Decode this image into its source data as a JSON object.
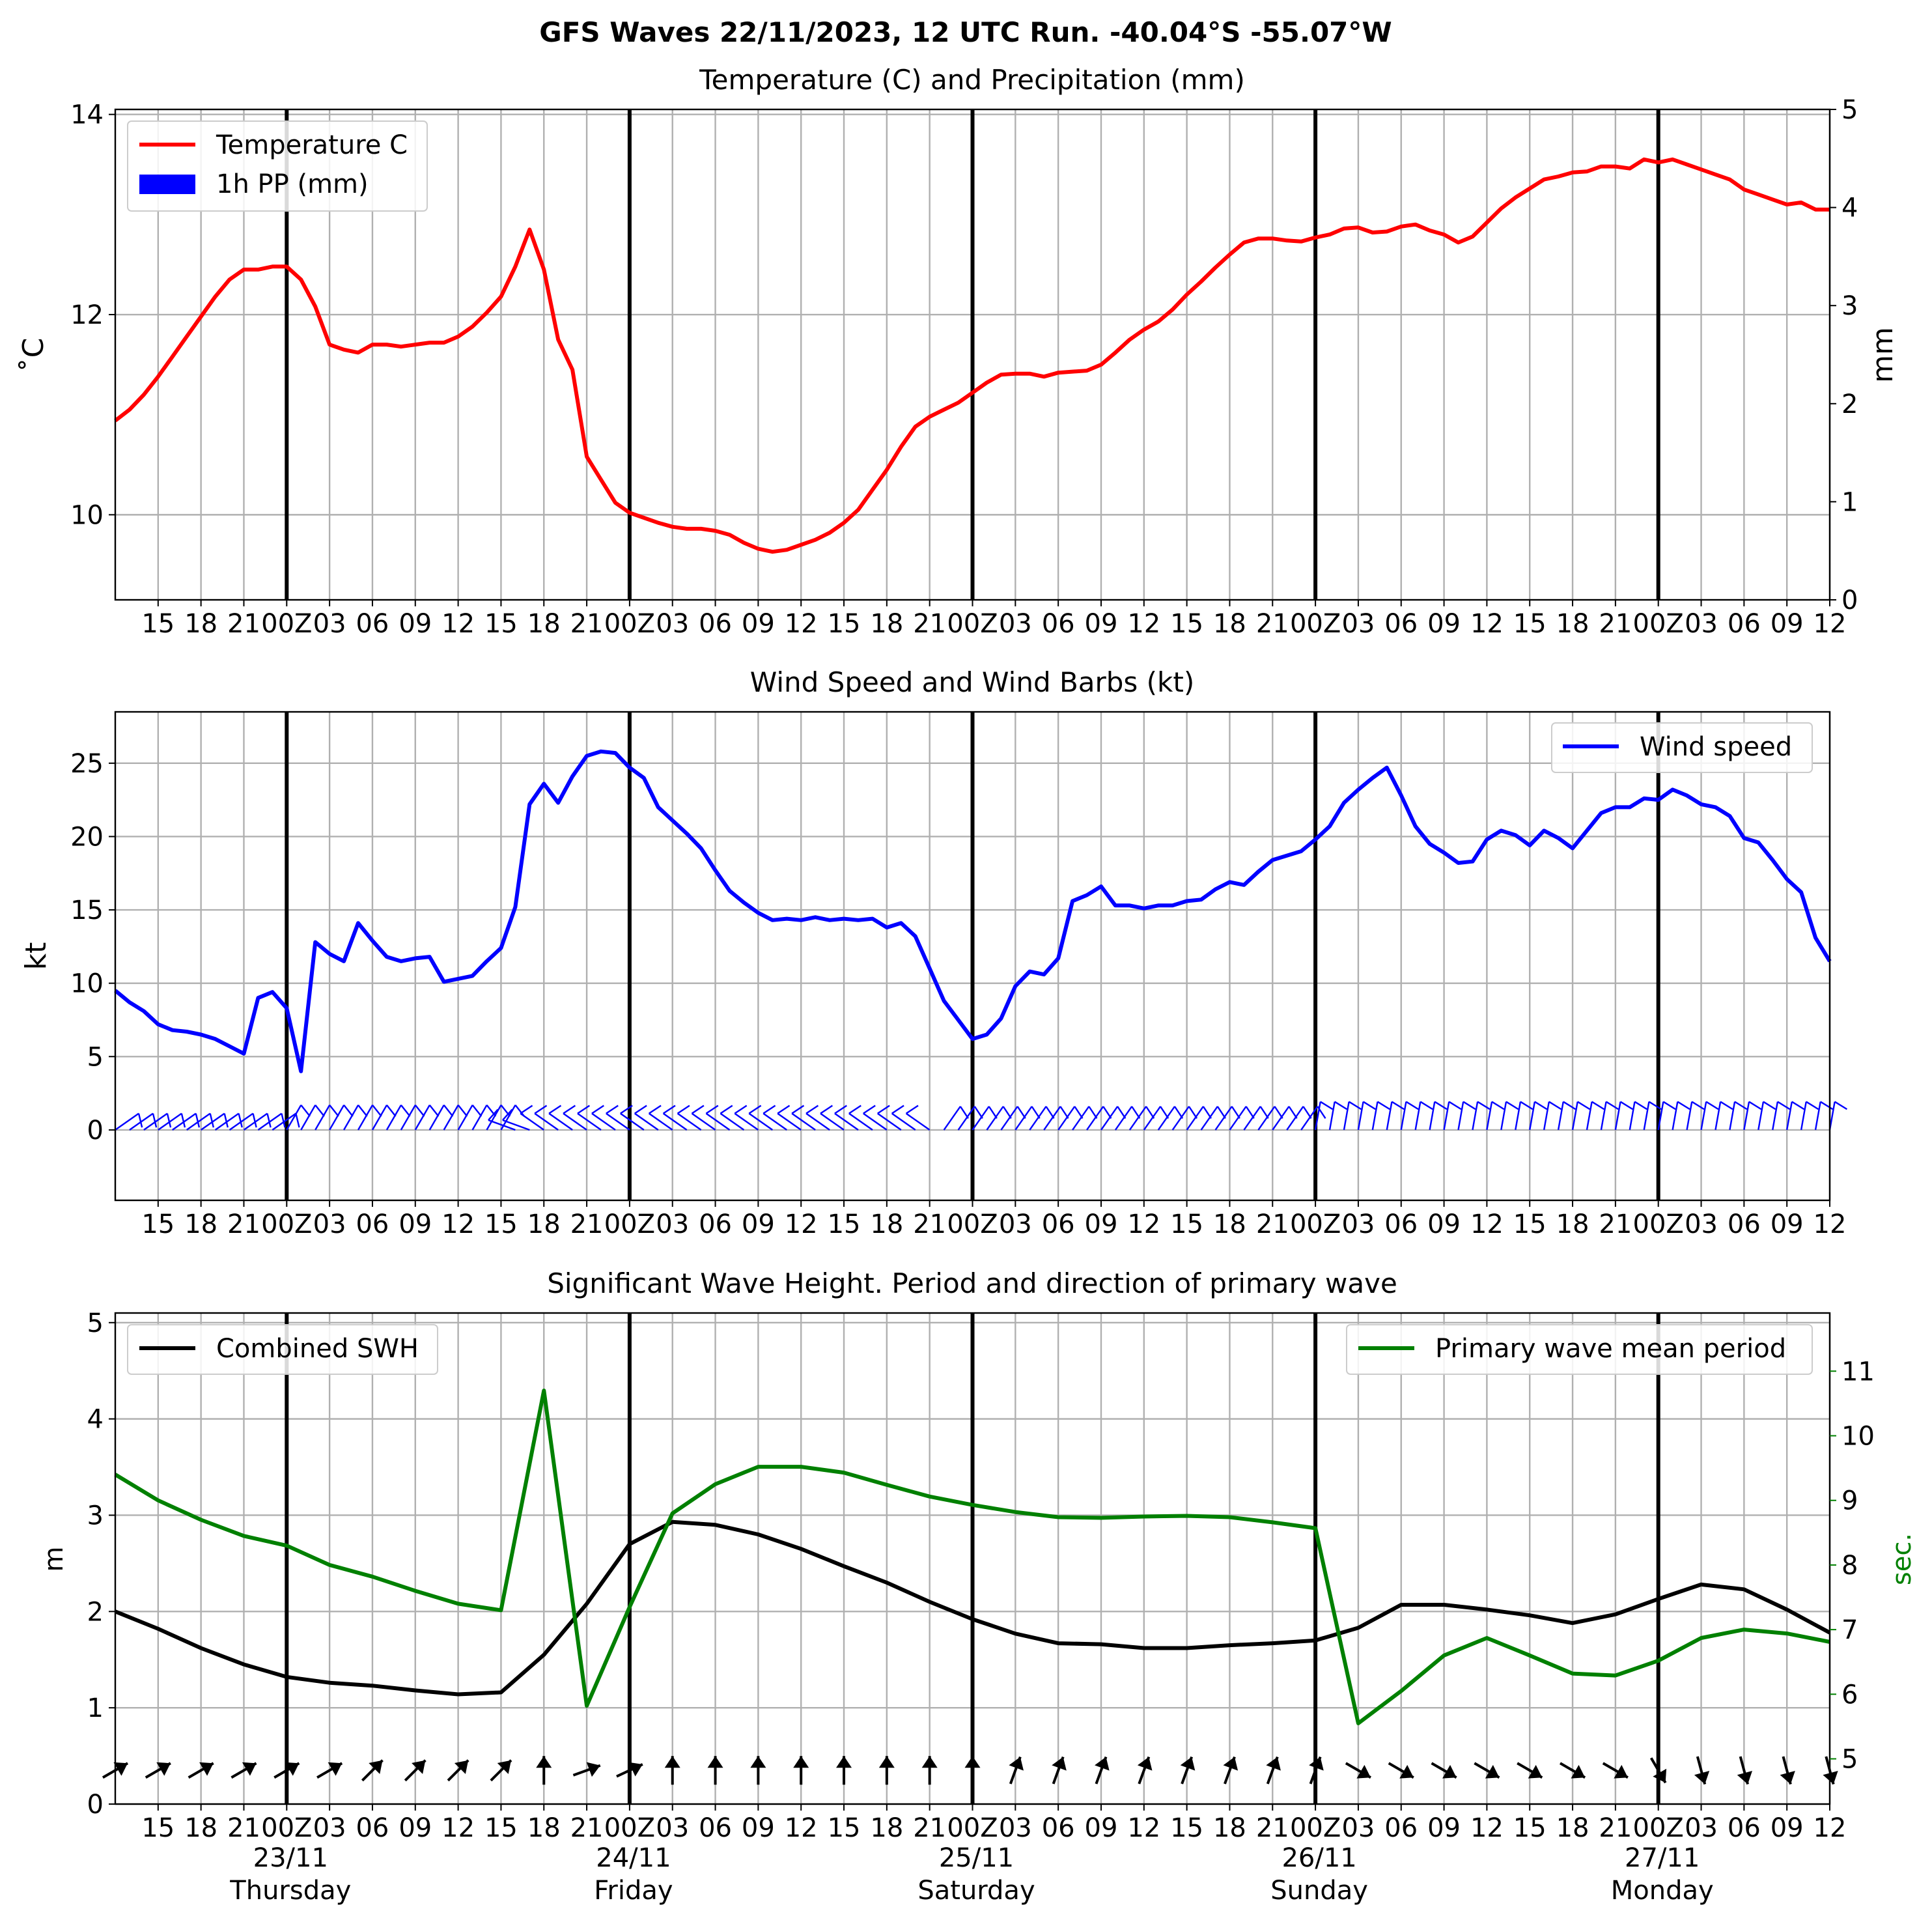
{
  "suptitle": "GFS Waves 22/11/2023, 12 UTC Run. -40.04°S -55.07°W",
  "colors": {
    "temperature": "#ff0000",
    "precip": "#0000ff",
    "wind": "#0000ff",
    "swh": "#000000",
    "period": "#008000",
    "grid": "#b0b0b0",
    "day_line": "#000000"
  },
  "time_axis": {
    "tick_labels": [
      "15",
      "18",
      "21",
      "00Z",
      "03",
      "06",
      "09",
      "12",
      "15",
      "18",
      "21",
      "00Z",
      "03",
      "06",
      "09",
      "12",
      "15",
      "18",
      "21",
      "00Z",
      "03",
      "06",
      "09",
      "12",
      "15",
      "18",
      "21",
      "00Z",
      "03",
      "06",
      "09",
      "12",
      "15",
      "18",
      "21",
      "00Z",
      "03",
      "06",
      "09",
      "12"
    ],
    "date_labels": [
      {
        "date": "23/11",
        "day": "Thursday"
      },
      {
        "date": "24/11",
        "day": "Friday"
      },
      {
        "date": "25/11",
        "day": "Saturday"
      },
      {
        "date": "26/11",
        "day": "Sunday"
      },
      {
        "date": "27/11",
        "day": "Monday"
      }
    ]
  },
  "chart_data": [
    {
      "type": "line",
      "title": "Temperature (C) and Precipitation (mm)",
      "ylabel": "$^\\circ$C",
      "ylabel_display": "˚C",
      "y2label": "mm",
      "ylim": [
        9.15,
        14.05
      ],
      "y2lim": [
        0,
        5
      ],
      "yticks": [
        "10",
        "12",
        "14"
      ],
      "y2ticks": [
        "0",
        "1",
        "2",
        "3",
        "4",
        "5"
      ],
      "legend": [
        "Temperature C",
        "1h PP (mm)"
      ],
      "legend_position": "upper-left",
      "x_hours": [
        0,
        1,
        2,
        3,
        4,
        5,
        6,
        7,
        8,
        9,
        10,
        11,
        12,
        13,
        14,
        15,
        16,
        17,
        18,
        19,
        20,
        21,
        22,
        23,
        24,
        25,
        26,
        27,
        28,
        29,
        30,
        31,
        32,
        33,
        34,
        35,
        36,
        37,
        38,
        39,
        40,
        41,
        42,
        43,
        44,
        45,
        46,
        47,
        48,
        49,
        50,
        51,
        52,
        53,
        54,
        55,
        56,
        57,
        58,
        59,
        60,
        61,
        62,
        63,
        64,
        65,
        66,
        67,
        68,
        69,
        70,
        71,
        72,
        73,
        74,
        75,
        76,
        77,
        78,
        79,
        80,
        81,
        82,
        83,
        84,
        85,
        86,
        87,
        88,
        89,
        90,
        91,
        92,
        93,
        94,
        95,
        96,
        97,
        98,
        99,
        100,
        101,
        102,
        103,
        104,
        105,
        106,
        107,
        108,
        109,
        110,
        111,
        112,
        113,
        114,
        115,
        116,
        117,
        118,
        119,
        120
      ],
      "temperature": [
        10.94,
        11.05,
        11.2,
        11.38,
        11.58,
        11.78,
        11.98,
        12.18,
        12.35,
        12.45,
        12.45,
        12.48,
        12.48,
        12.35,
        12.08,
        11.7,
        11.65,
        11.62,
        11.7,
        11.7,
        11.68,
        11.7,
        11.72,
        11.72,
        11.78,
        11.88,
        12.02,
        12.18,
        12.48,
        12.85,
        12.45,
        11.75,
        11.45,
        10.58,
        10.35,
        10.12,
        10.02,
        9.97,
        9.92,
        9.88,
        9.86,
        9.86,
        9.84,
        9.8,
        9.72,
        9.66,
        9.63,
        9.65,
        9.7,
        9.75,
        9.82,
        9.92,
        10.05,
        10.25,
        10.45,
        10.68,
        10.88,
        10.98,
        11.05,
        11.12,
        11.22,
        11.32,
        11.4,
        11.41,
        11.41,
        11.38,
        11.42,
        11.43,
        11.44,
        11.5,
        11.62,
        11.75,
        11.85,
        11.93,
        12.05,
        12.2,
        12.33,
        12.47,
        12.6,
        12.72,
        12.76,
        12.76,
        12.74,
        12.73,
        12.77,
        12.8,
        12.86,
        12.87,
        12.82,
        12.83,
        12.88,
        12.9,
        12.84,
        12.8,
        12.72,
        12.78,
        12.92,
        13.06,
        13.17,
        13.26,
        13.35,
        13.38,
        13.42,
        13.43,
        13.48,
        13.48,
        13.46,
        13.55,
        13.52,
        13.55,
        13.5,
        13.45,
        13.4,
        13.35,
        13.25,
        13.2,
        13.15,
        13.1,
        13.12,
        13.05,
        13.05
      ],
      "precip": []
    },
    {
      "type": "line",
      "title": "Wind Speed and Wind Barbs (kt)",
      "ylabel": "kt",
      "ylim": [
        -4.8,
        28.5
      ],
      "yticks": [
        "0",
        "5",
        "10",
        "15",
        "20",
        "25"
      ],
      "legend": [
        "Wind speed"
      ],
      "legend_position": "upper-right",
      "x_hours": [
        0,
        1,
        2,
        3,
        4,
        5,
        6,
        7,
        8,
        9,
        10,
        11,
        12,
        13,
        14,
        15,
        16,
        17,
        18,
        19,
        20,
        21,
        22,
        23,
        24,
        25,
        26,
        27,
        28,
        29,
        30,
        31,
        32,
        33,
        34,
        35,
        36,
        37,
        38,
        39,
        40,
        41,
        42,
        43,
        44,
        45,
        46,
        47,
        48,
        49,
        50,
        51,
        52,
        53,
        54,
        55,
        56,
        57,
        58,
        59,
        60,
        61,
        62,
        63,
        64,
        65,
        66,
        67,
        68,
        69,
        70,
        71,
        72,
        73,
        74,
        75,
        76,
        77,
        78,
        79,
        80,
        81,
        82,
        83,
        84,
        85,
        86,
        87,
        88,
        89,
        90,
        91,
        92,
        93,
        94,
        95,
        96,
        97,
        98,
        99,
        100,
        101,
        102,
        103,
        104,
        105,
        106,
        107,
        108,
        109,
        110,
        111,
        112,
        113,
        114,
        115,
        116,
        117,
        118,
        119,
        120
      ],
      "wind_speed": [
        9.5,
        8.7,
        8.1,
        7.2,
        6.8,
        6.7,
        6.5,
        6.2,
        5.7,
        5.2,
        9.0,
        9.4,
        8.3,
        4.0,
        12.8,
        12.0,
        11.5,
        14.1,
        12.9,
        11.8,
        11.5,
        11.7,
        11.8,
        10.1,
        10.3,
        10.5,
        11.5,
        12.4,
        15.2,
        22.2,
        23.6,
        22.3,
        24.1,
        25.5,
        25.8,
        25.7,
        24.7,
        24.0,
        22.0,
        21.1,
        20.2,
        19.2,
        17.7,
        16.3,
        15.5,
        14.8,
        14.3,
        14.4,
        14.3,
        14.5,
        14.3,
        14.4,
        14.3,
        14.4,
        13.8,
        14.1,
        13.2,
        11.0,
        8.8,
        7.5,
        6.2,
        6.5,
        7.6,
        9.8,
        10.8,
        10.6,
        11.7,
        15.6,
        16.0,
        16.6,
        15.3,
        15.3,
        15.1,
        15.3,
        15.3,
        15.6,
        15.7,
        16.4,
        16.9,
        16.7,
        17.6,
        18.4,
        18.7,
        19.0,
        19.8,
        20.7,
        22.3,
        23.2,
        24.0,
        24.7,
        22.8,
        20.7,
        19.5,
        18.9,
        18.2,
        18.3,
        19.8,
        20.4,
        20.1,
        19.4,
        20.4,
        19.9,
        19.2,
        20.4,
        21.6,
        22.0,
        22.0,
        22.6,
        22.5,
        23.2,
        22.8,
        22.2,
        22.0,
        21.4,
        19.9,
        19.6,
        18.4,
        17.1,
        16.2,
        13.1,
        11.5
      ]
    },
    {
      "type": "line",
      "title": "Significant Wave Height. Period and direction of primary wave",
      "ylabel": "m",
      "y2label": "sec.",
      "ylim": [
        0,
        5.1
      ],
      "y2lim": [
        4.3,
        11.9
      ],
      "yticks": [
        "0",
        "1",
        "2",
        "3",
        "4",
        "5"
      ],
      "y2ticks": [
        "5",
        "6",
        "7",
        "8",
        "9",
        "10",
        "11"
      ],
      "legend": [
        "Combined SWH",
        "Primary wave mean period"
      ],
      "legend_positions": [
        "upper-left",
        "upper-right"
      ],
      "x_hours": [
        0,
        3,
        6,
        9,
        12,
        15,
        18,
        21,
        24,
        27,
        30,
        33,
        36,
        39,
        42,
        45,
        48,
        51,
        54,
        57,
        60,
        63,
        66,
        69,
        72,
        75,
        78,
        81,
        84,
        87,
        90,
        93,
        96,
        99,
        102,
        105,
        108,
        111,
        114,
        117,
        120
      ],
      "swh": [
        2.0,
        1.82,
        1.62,
        1.45,
        1.32,
        1.26,
        1.23,
        1.18,
        1.14,
        1.16,
        1.55,
        2.08,
        2.7,
        2.93,
        2.9,
        2.8,
        2.65,
        2.47,
        2.3,
        2.1,
        1.92,
        1.77,
        1.67,
        1.66,
        1.62,
        1.62,
        1.65,
        1.67,
        1.7,
        1.83,
        2.07,
        2.07,
        2.02,
        1.96,
        1.88,
        1.97,
        2.13,
        2.28,
        2.23,
        2.02,
        1.78
      ],
      "mean_period": [
        9.4,
        9.0,
        8.7,
        8.45,
        8.3,
        8.0,
        7.82,
        7.6,
        7.4,
        7.3,
        10.7,
        5.82,
        7.35,
        8.8,
        9.25,
        9.52,
        9.52,
        9.43,
        9.24,
        9.06,
        8.93,
        8.82,
        8.74,
        8.73,
        8.75,
        8.76,
        8.74,
        8.66,
        8.57,
        5.55,
        6.05,
        6.6,
        6.87,
        6.6,
        6.32,
        6.29,
        6.52,
        6.87,
        7.0,
        6.94,
        6.81
      ],
      "wave_direction_deg_from": [
        240,
        240,
        240,
        240,
        240,
        240,
        225,
        225,
        225,
        225,
        180,
        250,
        245,
        180,
        180,
        180,
        180,
        180,
        180,
        180,
        180,
        200,
        200,
        200,
        200,
        200,
        200,
        200,
        200,
        300,
        300,
        300,
        300,
        300,
        300,
        300,
        330,
        345,
        345,
        345,
        345
      ]
    }
  ]
}
